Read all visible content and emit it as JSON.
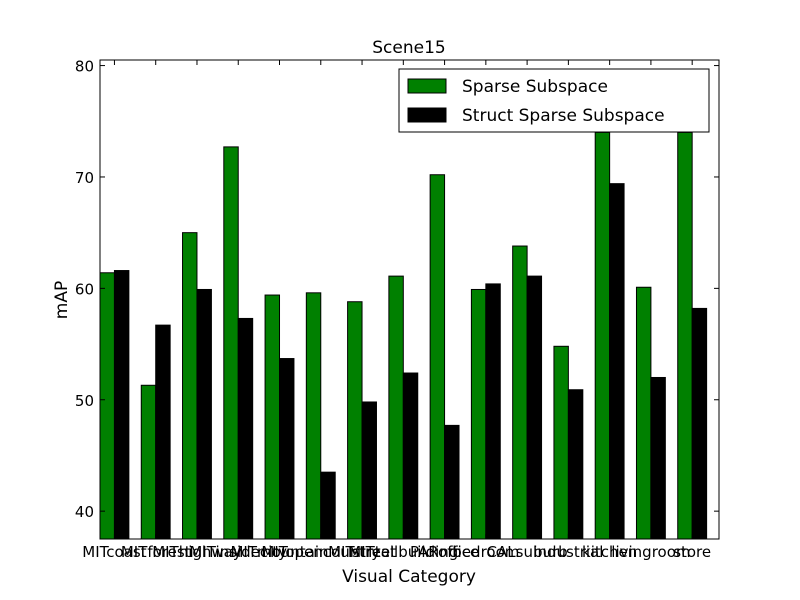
{
  "chart_data": {
    "type": "bar",
    "title": "Scene15",
    "xlabel": "Visual Category",
    "ylabel": "mAP",
    "ylim": [
      37.5,
      80.5
    ],
    "yticks": [
      40,
      50,
      60,
      70,
      80
    ],
    "grid": false,
    "legend_position": "top-right",
    "categories": [
      "MITcoast",
      "MITforest",
      "MIThighway",
      "MITinsidecity",
      "MITmountain",
      "MITopencountry",
      "MITstreet",
      "MITtallbuilding",
      "PARoffice",
      "bedroom",
      "CALsuburb",
      "industrial",
      "kitchen",
      "livingroom",
      "store"
    ],
    "series": [
      {
        "name": "Sparse Subspace",
        "color": "#008000",
        "values": [
          61.4,
          51.3,
          65.0,
          72.7,
          59.4,
          59.6,
          58.8,
          61.1,
          70.2,
          59.9,
          63.8,
          54.8,
          74.0,
          60.1,
          74.0
        ]
      },
      {
        "name": "Struct Sparse Subspace",
        "color": "#000000",
        "values": [
          61.6,
          56.7,
          59.9,
          57.3,
          53.7,
          43.5,
          49.8,
          52.4,
          47.7,
          60.4,
          61.1,
          50.9,
          69.4,
          52.0,
          58.2
        ]
      }
    ]
  }
}
